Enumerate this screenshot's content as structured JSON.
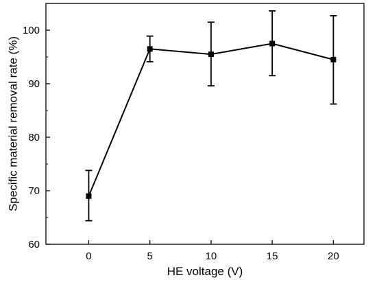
{
  "chart_data": {
    "type": "line",
    "xlabel": "HE voltage (V)",
    "ylabel": "Specific material removal rate (%)",
    "xlim": [
      -3.5,
      22.5
    ],
    "ylim": [
      60,
      105
    ],
    "xticks": [
      0,
      5,
      10,
      15,
      20
    ],
    "yticks": [
      60,
      70,
      80,
      90,
      100
    ],
    "xtick_labels": [
      "0",
      "5",
      "10",
      "15",
      "20"
    ],
    "ytick_labels": [
      "60",
      "70",
      "80",
      "90",
      "100"
    ],
    "grid": false,
    "series": [
      {
        "x": [
          0,
          5,
          10,
          15,
          20
        ],
        "y": [
          69.0,
          96.5,
          95.5,
          97.5,
          94.5
        ],
        "err_low": [
          64.4,
          94.1,
          89.6,
          91.5,
          86.2
        ],
        "err_high": [
          73.8,
          98.9,
          101.5,
          103.6,
          102.7
        ],
        "marker": "square",
        "color": "#000000"
      }
    ]
  }
}
